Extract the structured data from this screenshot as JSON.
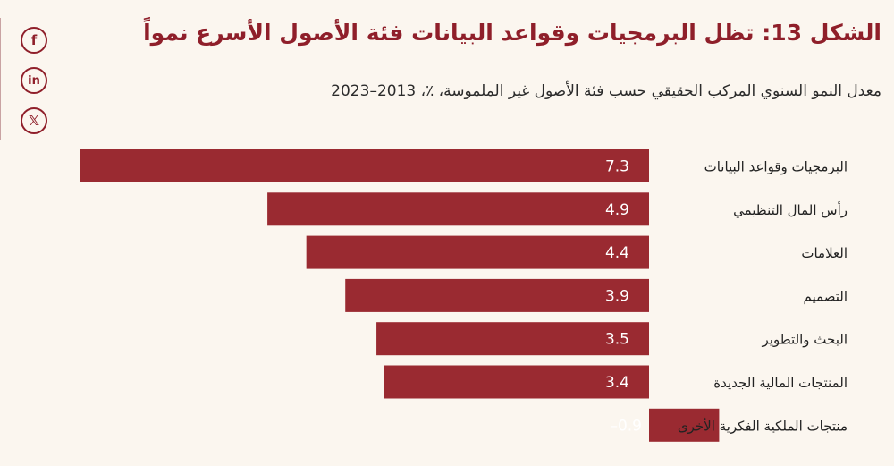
{
  "chart_data": {
    "type": "bar",
    "orientation": "horizontal",
    "title": "الشكل 13: تظل البرمجيات وقواعد البيانات فئة الأصول الأسرع نمواً",
    "subtitle": "معدل النمو السنوي المركب الحقيقي حسب فئة الأصول غير الملموسة، ٪، 2013–2023",
    "categories": [
      "البرمجيات وقواعد البيانات",
      "رأس المال التنظيمي",
      "العلامات",
      "التصميم",
      "البحث والتطوير",
      "المنتجات المالية الجديدة",
      "منتجات الملكية الفكرية الأخرى"
    ],
    "values": [
      7.3,
      4.9,
      4.4,
      3.9,
      3.5,
      3.4,
      -0.9
    ],
    "value_labels": [
      "7.3",
      "4.9",
      "4.4",
      "3.9",
      "3.5",
      "3.4",
      "–0.9"
    ],
    "bar_color": "#9a2a31",
    "grid": false,
    "legend": "none"
  },
  "share": {
    "facebook_icon": "f",
    "linkedin_icon": "in",
    "x_icon": "𝕏"
  }
}
